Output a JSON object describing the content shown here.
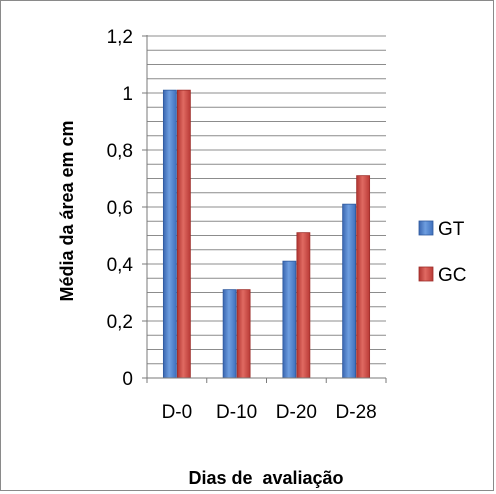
{
  "chart_data": {
    "type": "bar",
    "categories": [
      "D-0",
      "D-10",
      "D-20",
      "D-28"
    ],
    "series": [
      {
        "name": "GT",
        "values": [
          1.01,
          0.31,
          0.41,
          0.61
        ]
      },
      {
        "name": "GC",
        "values": [
          1.01,
          0.31,
          0.51,
          0.71
        ]
      }
    ],
    "ylim": [
      0,
      1.2
    ],
    "yticks": [
      0,
      0.2,
      0.4,
      0.6,
      0.8,
      1.0,
      1.2
    ],
    "ytick_labels": [
      "0",
      "0,2",
      "0,4",
      "0,6",
      "0,8",
      "1",
      "1,2"
    ],
    "xlabel": "Dias de  avaliação",
    "ylabel": "Média da área em cm",
    "grid": "horizontal minor + major",
    "legend": "right",
    "colors": {
      "GT": "#4a7ec8",
      "GC": "#c8403c",
      "grid": "#8c8c8c"
    }
  }
}
